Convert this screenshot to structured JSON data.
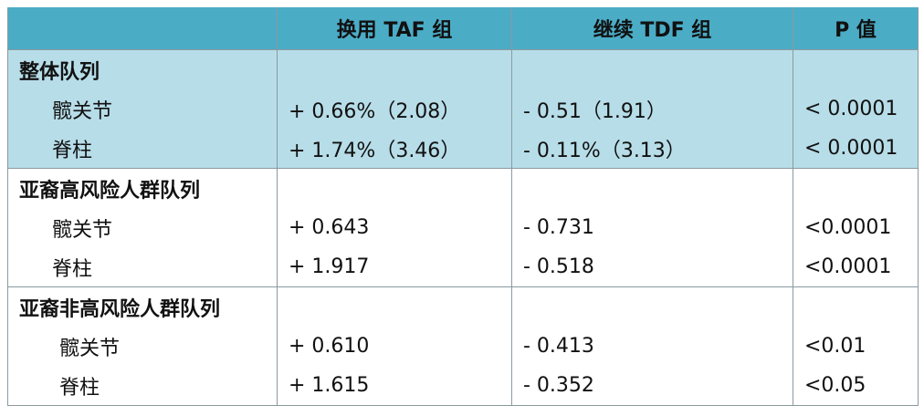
{
  "header": [
    "",
    "换用 TAF 组",
    "继续 TDF 组",
    "P 值"
  ],
  "sections": [
    {
      "title": "整体队列",
      "rows": [
        [
          "髋关节",
          "+ 0.66%（2.08）",
          "- 0.51（1.91）",
          "< 0.0001"
        ],
        [
          "脊柱",
          "+ 1.74%（3.46）",
          "- 0.11%（3.13）",
          "< 0.0001"
        ]
      ]
    },
    {
      "title": "亚裔高风险人群队列",
      "rows": [
        [
          "髋关节",
          "+ 0.643",
          "- 0.731",
          "<0.0001"
        ],
        [
          "脊柱",
          "+ 1.917",
          "- 0.518",
          "<0.0001"
        ]
      ]
    },
    {
      "title": "亚裔非高风险人群队列",
      "rows": [
        [
          "髋关节",
          "+ 0.610",
          "- 0.413",
          "<0.01"
        ],
        [
          "脊柱",
          "+ 1.615",
          "- 0.352",
          "<0.05"
        ]
      ]
    }
  ]
}
